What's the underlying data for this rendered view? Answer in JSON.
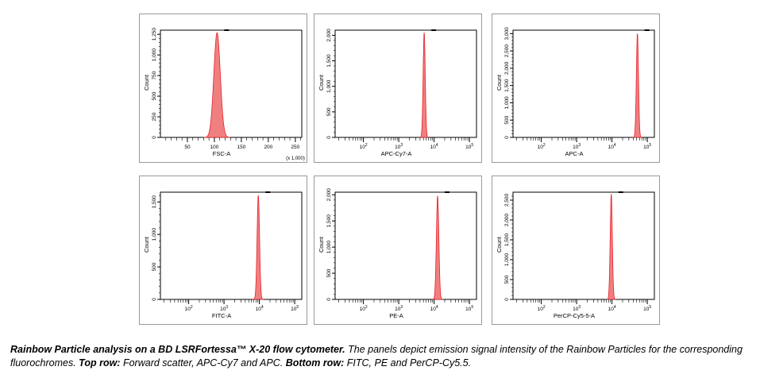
{
  "caption": {
    "title": "Rainbow Particle analysis on a BD LSRFortessa™ X-20 flow cytometer.",
    "text_1": "The panels depict emission signal intensity of the Rainbow Particles for the corresponding fluorochromes.",
    "toprow_label": "Top row:",
    "toprow_text": "Forward scatter, APC-Cy7 and APC.",
    "bottomrow_label": "Bottom row:",
    "bottomrow_text": "FITC, PE and PerCP-Cy5.5."
  },
  "colors": {
    "fill": "#f08080",
    "stroke": "#e8202a",
    "frame": "#000000"
  },
  "chart_data": [
    {
      "type": "area",
      "xlabel": "FSC-A",
      "ylabel": "Count",
      "x_scale": "linear",
      "x_unit": "(x 1,000)",
      "xlim": [
        0,
        262
      ],
      "x_ticks": [
        "50",
        "100",
        "150",
        "200",
        "250"
      ],
      "ylim": [
        0,
        1300
      ],
      "y_ticks": [
        "0",
        "250",
        "500",
        "750",
        "1,000",
        "1,250"
      ],
      "peak": {
        "center": 105,
        "height": 1270,
        "spread": 6
      }
    },
    {
      "type": "area",
      "xlabel": "APC-Cy7-A",
      "ylabel": "Count",
      "x_scale": "log",
      "xlim": [
        1.2,
        5.2
      ],
      "x_ticks": [
        "10^2",
        "10^3",
        "10^4",
        "10^5"
      ],
      "ylim": [
        0,
        2100
      ],
      "y_ticks": [
        "0",
        "500",
        "1,000",
        "1,500",
        "2,000"
      ],
      "peak": {
        "center": 3.72,
        "height": 2050,
        "spread": 0.03
      }
    },
    {
      "type": "area",
      "xlabel": "APC-A",
      "ylabel": "Count",
      "x_scale": "log",
      "xlim": [
        1.2,
        5.2
      ],
      "x_ticks": [
        "10^2",
        "10^3",
        "10^4",
        "10^5"
      ],
      "ylim": [
        0,
        3100
      ],
      "y_ticks": [
        "0",
        "500",
        "1,000",
        "1,500",
        "2,000",
        "2,500",
        "3,000"
      ],
      "peak": {
        "center": 4.72,
        "height": 3000,
        "spread": 0.03
      }
    },
    {
      "type": "area",
      "xlabel": "FITC-A",
      "ylabel": "Count",
      "x_scale": "log",
      "xlim": [
        1.2,
        5.2
      ],
      "x_ticks": [
        "10^2",
        "10^3",
        "10^4",
        "10^5"
      ],
      "ylim": [
        0,
        1650
      ],
      "y_ticks": [
        "0",
        "500",
        "1,000",
        "1,500"
      ],
      "peak": {
        "center": 3.97,
        "height": 1600,
        "spread": 0.035
      }
    },
    {
      "type": "area",
      "xlabel": "PE-A",
      "ylabel": "Count",
      "x_scale": "log",
      "xlim": [
        1.2,
        5.2
      ],
      "x_ticks": [
        "10^2",
        "10^3",
        "10^4",
        "10^5"
      ],
      "ylim": [
        0,
        2050
      ],
      "y_ticks": [
        "0",
        "500",
        "1,000",
        "1,500",
        "2,000"
      ],
      "peak": {
        "center": 4.1,
        "height": 1980,
        "spread": 0.035
      }
    },
    {
      "type": "area",
      "xlabel": "PerCP-Cy5-5-A",
      "ylabel": "Count",
      "x_scale": "log",
      "xlim": [
        1.2,
        5.2
      ],
      "x_ticks": [
        "10^2",
        "10^3",
        "10^4",
        "10^5"
      ],
      "ylim": [
        0,
        2700
      ],
      "y_ticks": [
        "0",
        "500",
        "1,000",
        "1,500",
        "2,000",
        "2,500"
      ],
      "peak": {
        "center": 3.98,
        "height": 2650,
        "spread": 0.03
      }
    }
  ]
}
